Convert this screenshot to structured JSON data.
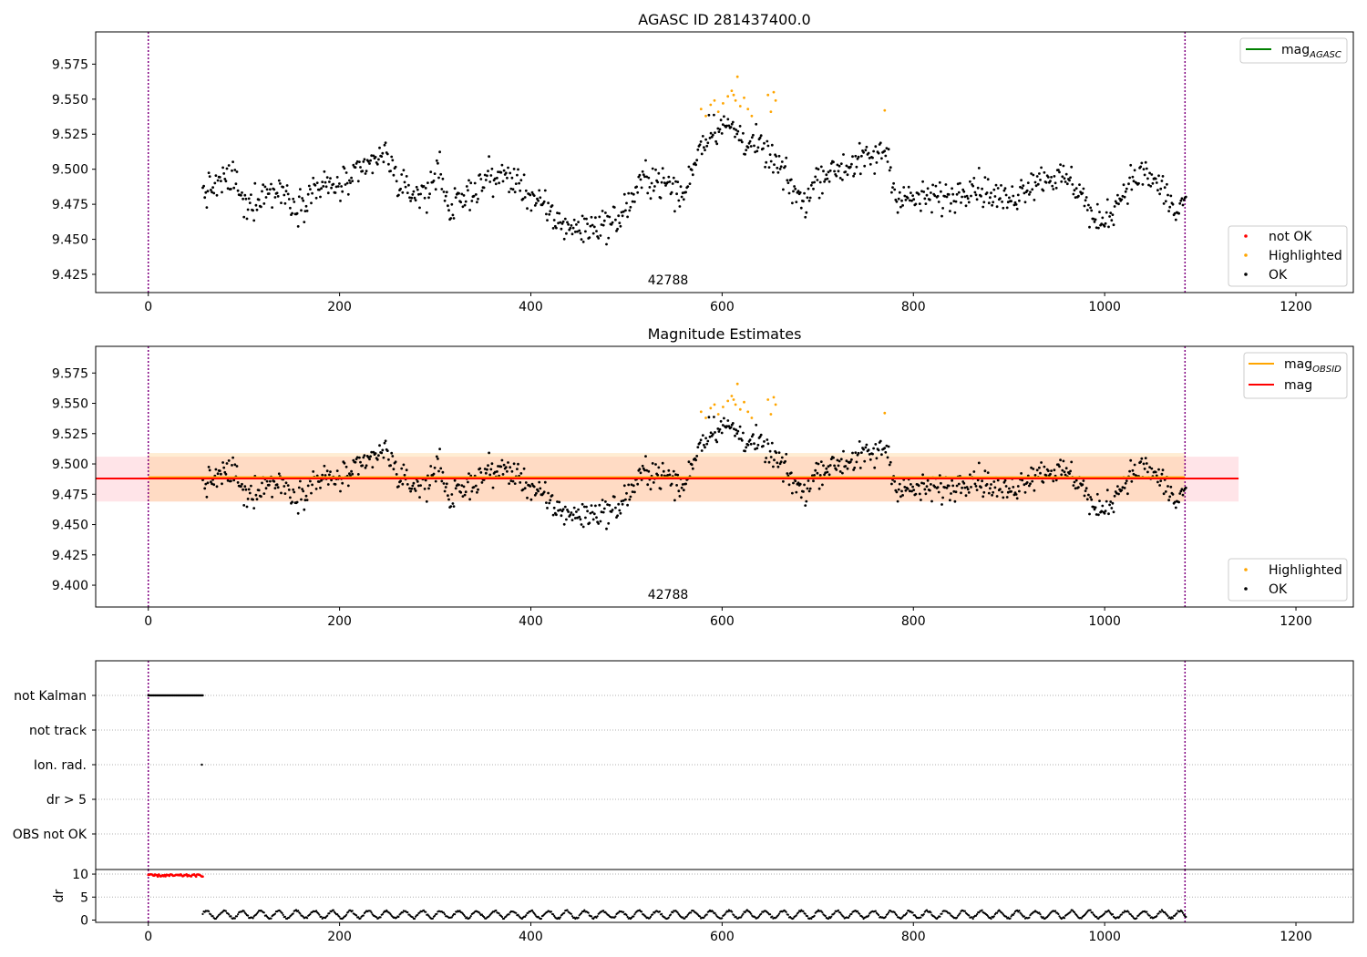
{
  "chart_data": [
    {
      "type": "scatter",
      "title": "AGASC ID 281437400.0",
      "annotation": "42788",
      "x_ticks": [
        0,
        200,
        400,
        600,
        800,
        1000,
        1200
      ],
      "y_ticks": [
        "9.425",
        "9.450",
        "9.475",
        "9.500",
        "9.525",
        "9.550",
        "9.575"
      ],
      "xlim": [
        -55,
        1260
      ],
      "ylim": [
        9.412,
        9.598
      ],
      "vlines_x": [
        0,
        1084
      ],
      "line_legend": [
        {
          "label": "mag",
          "sub": "AGASC",
          "color": "#008000"
        }
      ],
      "marker_legend": [
        {
          "label": "not OK",
          "color": "#ff0000"
        },
        {
          "label": "Highlighted",
          "color": "#ffa500"
        },
        {
          "label": "OK",
          "color": "#000000"
        }
      ],
      "series": [
        {
          "name": "not OK",
          "color": "#ff0000",
          "values": []
        },
        {
          "name": "Highlighted",
          "color": "#ffa500",
          "values": "highlighted_points"
        },
        {
          "name": "OK",
          "color": "#000000",
          "values": "ok_trend"
        }
      ],
      "x_range": [
        57,
        1085
      ]
    },
    {
      "type": "scatter",
      "title": "Magnitude Estimates",
      "annotation": "42788",
      "x_ticks": [
        0,
        200,
        400,
        600,
        800,
        1000,
        1200
      ],
      "y_ticks": [
        "9.400",
        "9.425",
        "9.450",
        "9.475",
        "9.500",
        "9.525",
        "9.550",
        "9.575"
      ],
      "xlim": [
        -55,
        1260
      ],
      "ylim": [
        9.382,
        9.597
      ],
      "vlines_x": [
        0,
        1084
      ],
      "band_mag": {
        "x": [
          -55,
          1140
        ],
        "y": [
          9.469,
          9.506
        ],
        "color": "#ffb3be"
      },
      "band_obsid": {
        "x": [
          0,
          1084
        ],
        "y": [
          9.469,
          9.509
        ],
        "color": "#ffcc80"
      },
      "line_mag": {
        "x": [
          -55,
          1140
        ],
        "y": 9.488,
        "color": "#ff0000"
      },
      "line_obsid": {
        "x": [
          0,
          1084
        ],
        "y": 9.489,
        "color": "#ffa500"
      },
      "line_legend": [
        {
          "label": "mag",
          "sub": "OBSID",
          "color": "#ffa500"
        },
        {
          "label": "mag",
          "sub": "",
          "color": "#ff0000"
        }
      ],
      "marker_legend": [
        {
          "label": "Highlighted",
          "color": "#ffa500"
        },
        {
          "label": "OK",
          "color": "#000000"
        }
      ],
      "series": [
        {
          "name": "Highlighted",
          "color": "#ffa500",
          "values": "highlighted_points"
        },
        {
          "name": "OK",
          "color": "#000000",
          "values": "ok_trend"
        }
      ]
    },
    {
      "type": "scatter",
      "categories": [
        "not Kalman",
        "not track",
        "Ion. rad.",
        "dr > 5",
        "OBS not OK"
      ],
      "flags": [
        {
          "category": "not Kalman",
          "x_range": [
            0,
            57
          ]
        },
        {
          "category": "Ion. rad.",
          "x": [
            56
          ]
        }
      ],
      "vlines_x": [
        0,
        1084
      ],
      "xlim": [
        -55,
        1260
      ]
    },
    {
      "type": "scatter",
      "ylabel": "dr",
      "x_ticks": [
        0,
        200,
        400,
        600,
        800,
        1000,
        1200
      ],
      "y_ticks": [
        0,
        5,
        10
      ],
      "ylim": [
        -0.5,
        11
      ],
      "xlim": [
        -55,
        1260
      ],
      "vlines_x": [
        0,
        1084
      ],
      "series": [
        {
          "name": "dr > 5",
          "color": "#ff0000",
          "x_range": [
            0,
            57
          ],
          "y": 9.7
        },
        {
          "name": "dr",
          "color": "#000000",
          "x_range": [
            57,
            1085
          ],
          "y_range": [
            0.3,
            2.8
          ]
        }
      ]
    }
  ],
  "trend_nodes": [
    [
      57,
      9.483
    ],
    [
      75,
      9.49
    ],
    [
      90,
      9.495
    ],
    [
      100,
      9.472
    ],
    [
      120,
      9.483
    ],
    [
      140,
      9.485
    ],
    [
      155,
      9.473
    ],
    [
      175,
      9.487
    ],
    [
      200,
      9.488
    ],
    [
      220,
      9.495
    ],
    [
      235,
      9.506
    ],
    [
      250,
      9.51
    ],
    [
      265,
      9.485
    ],
    [
      290,
      9.482
    ],
    [
      305,
      9.502
    ],
    [
      315,
      9.47
    ],
    [
      335,
      9.482
    ],
    [
      355,
      9.494
    ],
    [
      375,
      9.495
    ],
    [
      390,
      9.488
    ],
    [
      410,
      9.474
    ],
    [
      430,
      9.462
    ],
    [
      450,
      9.457
    ],
    [
      470,
      9.46
    ],
    [
      490,
      9.463
    ],
    [
      505,
      9.478
    ],
    [
      520,
      9.495
    ],
    [
      540,
      9.49
    ],
    [
      560,
      9.48
    ],
    [
      575,
      9.515
    ],
    [
      590,
      9.53
    ],
    [
      610,
      9.53
    ],
    [
      625,
      9.52
    ],
    [
      640,
      9.515
    ],
    [
      655,
      9.505
    ],
    [
      670,
      9.49
    ],
    [
      685,
      9.475
    ],
    [
      700,
      9.495
    ],
    [
      720,
      9.5
    ],
    [
      740,
      9.505
    ],
    [
      760,
      9.508
    ],
    [
      772,
      9.515
    ],
    [
      780,
      9.483
    ],
    [
      800,
      9.478
    ],
    [
      820,
      9.48
    ],
    [
      840,
      9.48
    ],
    [
      860,
      9.49
    ],
    [
      880,
      9.483
    ],
    [
      900,
      9.477
    ],
    [
      920,
      9.49
    ],
    [
      940,
      9.495
    ],
    [
      960,
      9.493
    ],
    [
      975,
      9.485
    ],
    [
      990,
      9.46
    ],
    [
      1005,
      9.468
    ],
    [
      1025,
      9.49
    ],
    [
      1040,
      9.497
    ],
    [
      1060,
      9.487
    ],
    [
      1075,
      9.467
    ],
    [
      1085,
      9.482
    ]
  ],
  "highlighted_points": [
    [
      578,
      9.543
    ],
    [
      583,
      9.538
    ],
    [
      588,
      9.546
    ],
    [
      592,
      9.549
    ],
    [
      596,
      9.541
    ],
    [
      601,
      9.547
    ],
    [
      606,
      9.552
    ],
    [
      610,
      9.556
    ],
    [
      612,
      9.553
    ],
    [
      614,
      9.549
    ],
    [
      616,
      9.566
    ],
    [
      619,
      9.545
    ],
    [
      623,
      9.551
    ],
    [
      627,
      9.543
    ],
    [
      631,
      9.538
    ],
    [
      648,
      9.553
    ],
    [
      651,
      9.541
    ],
    [
      654,
      9.555
    ],
    [
      656,
      9.549
    ],
    [
      770,
      9.542
    ]
  ]
}
